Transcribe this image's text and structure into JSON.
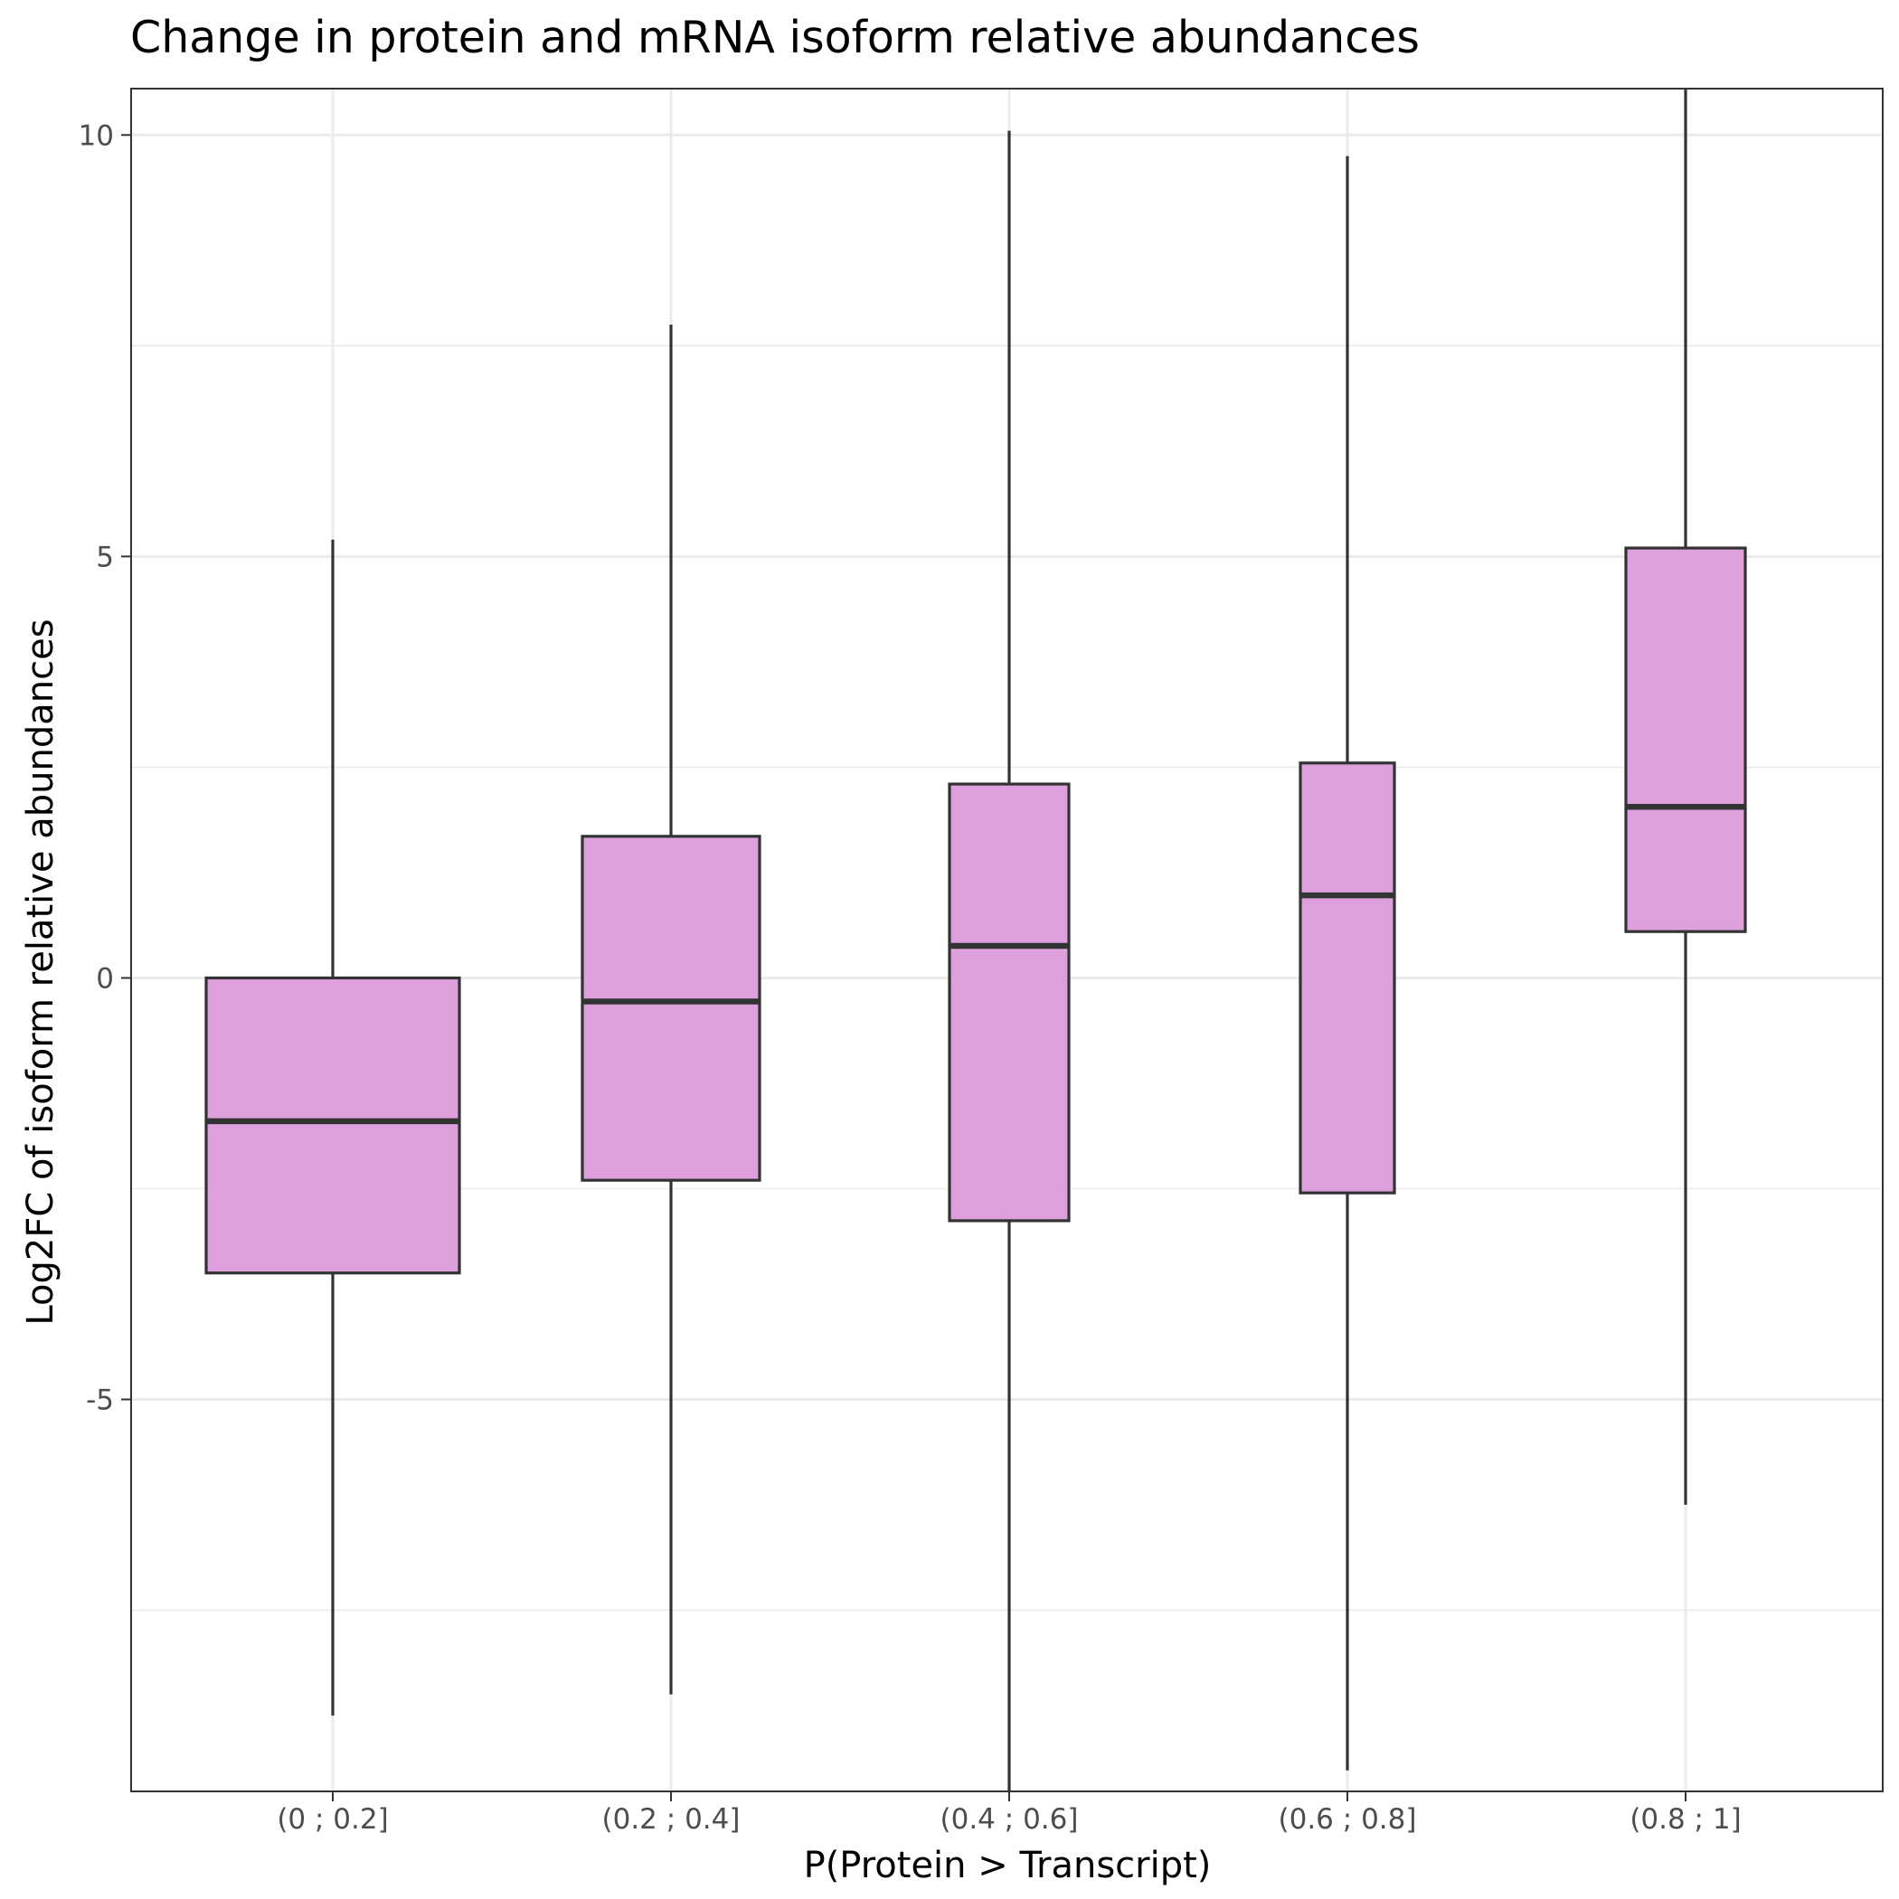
{
  "chart_data": {
    "type": "box",
    "title": "Change in protein and mRNA isoform relative abundances",
    "xlabel": "P(Protein > Transcript)",
    "ylabel": "Log2FC of isoform relative abundances",
    "ylim": [
      -9.65,
      10.55
    ],
    "y_ticks": [
      10,
      5,
      0,
      -5
    ],
    "y_minor_ticks": [
      7.5,
      2.5,
      -2.5,
      -7.5
    ],
    "categories": [
      "(0 ; 0.2]",
      "(0.2 ; 0.4]",
      "(0.4 ; 0.6]",
      "(0.6 ; 0.8]",
      "(0.8 ; 1]"
    ],
    "boxes": [
      {
        "min": -8.75,
        "q1": -3.5,
        "median": -1.7,
        "q3": 0.0,
        "max": 5.2
      },
      {
        "min": -8.5,
        "q1": -2.4,
        "median": -0.28,
        "q3": 1.68,
        "max": 7.75
      },
      {
        "min": -9.65,
        "q1": -2.88,
        "median": 0.38,
        "q3": 2.3,
        "max": 10.05
      },
      {
        "min": -9.4,
        "q1": -2.55,
        "median": 0.98,
        "q3": 2.55,
        "max": 9.75
      },
      {
        "min": -6.25,
        "q1": 0.55,
        "median": 2.03,
        "q3": 5.1,
        "max": 10.55
      }
    ],
    "fill_color": "#dda0dd",
    "stroke_color": "#333333",
    "grid": true
  }
}
